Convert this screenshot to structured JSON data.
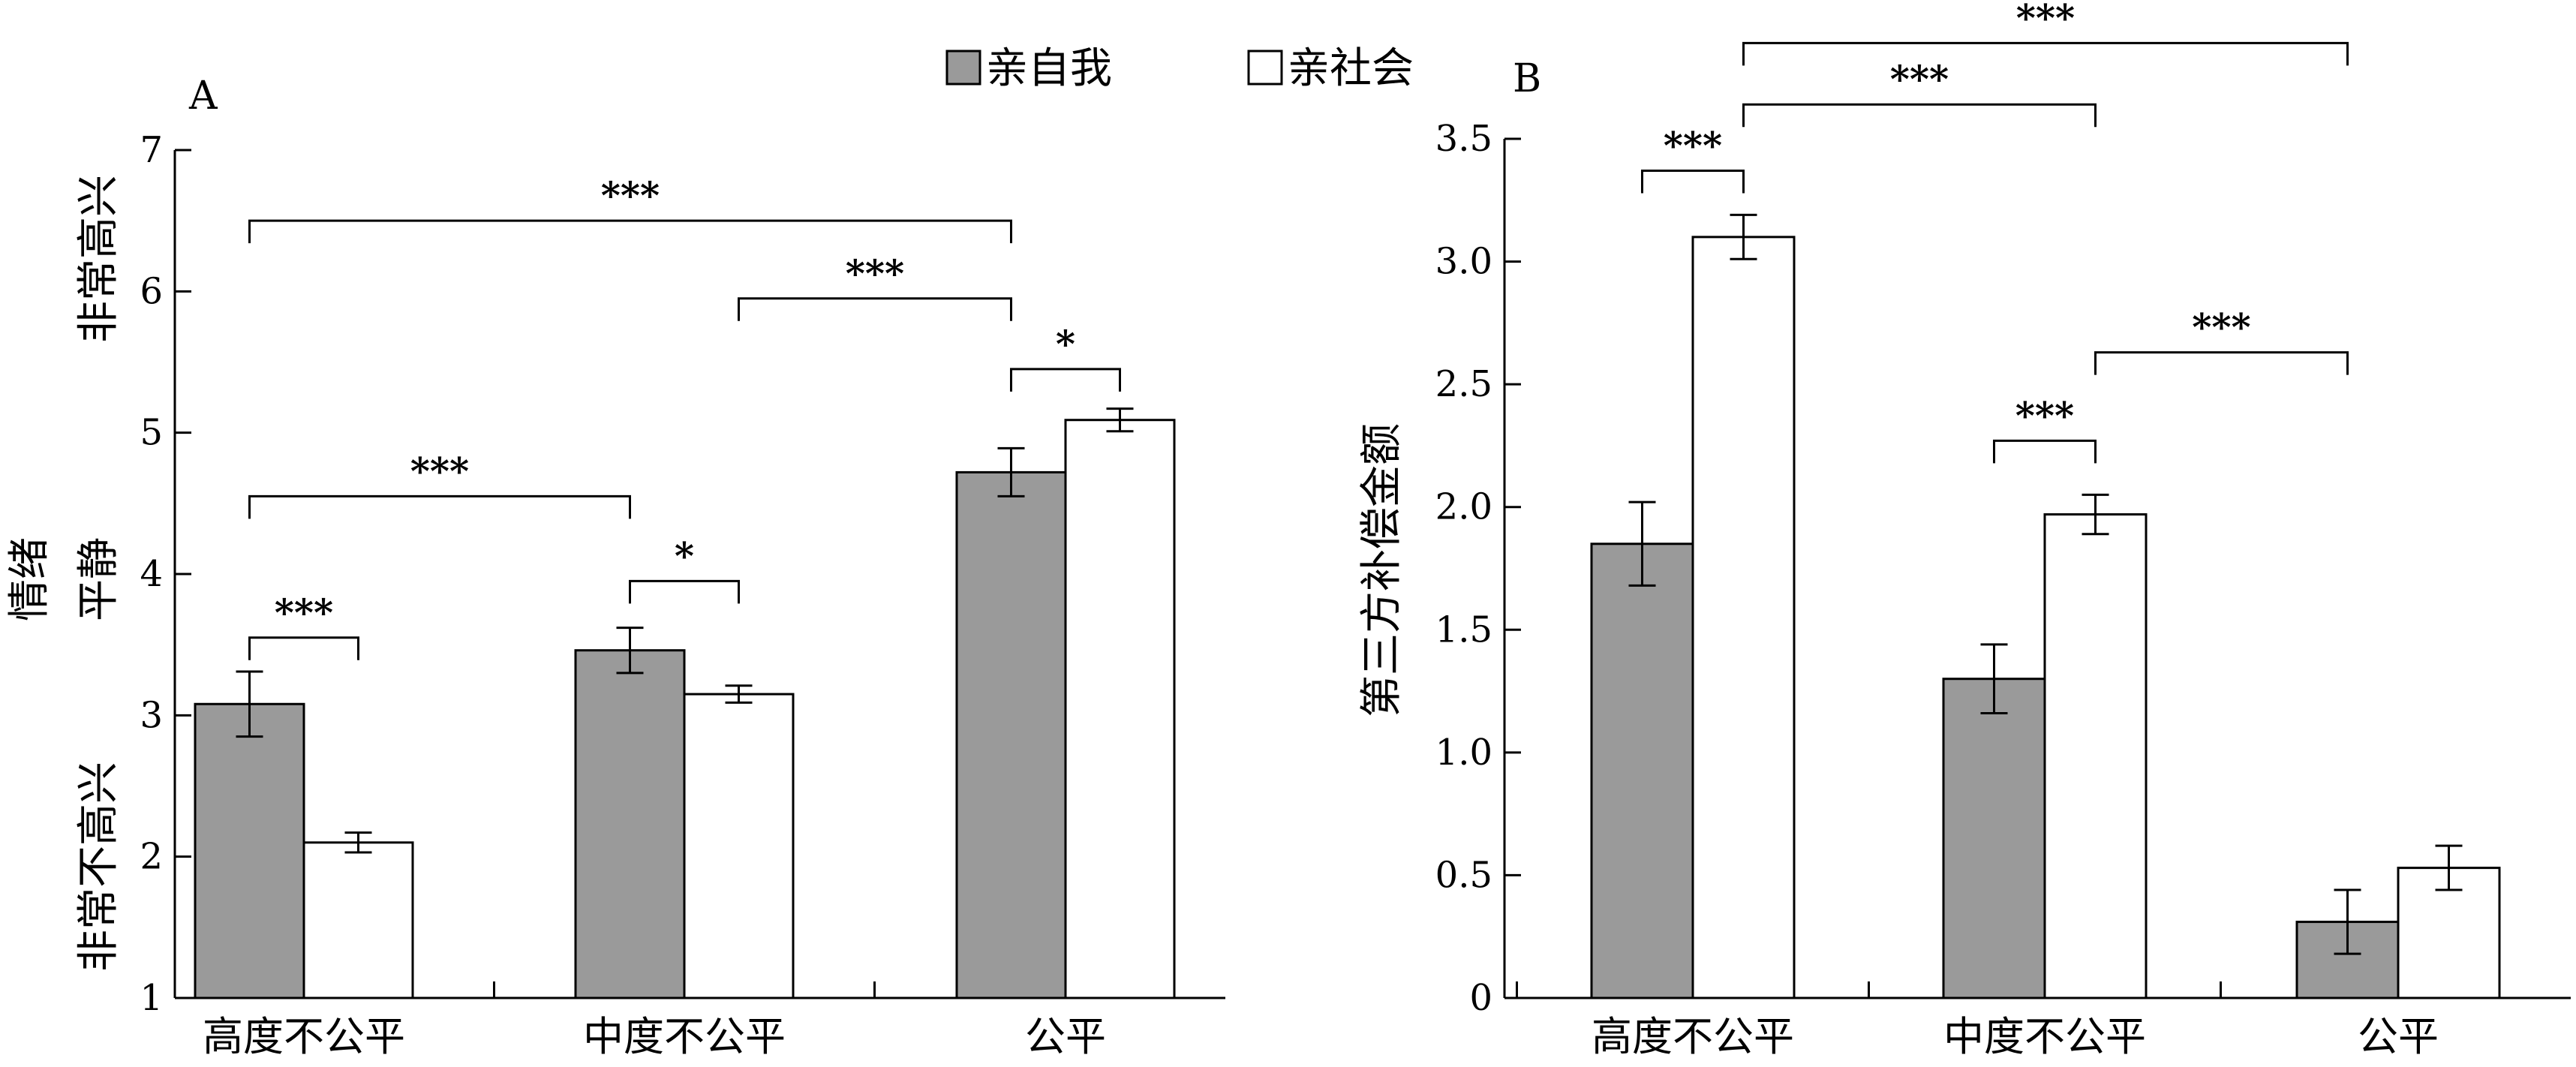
{
  "legend": {
    "self": "亲自我",
    "social": "亲社会"
  },
  "colors": {
    "self": "#9a9a9a",
    "social": "#ffffff",
    "axis": "#000000"
  },
  "chart_data": [
    {
      "type": "bar",
      "panel_label": "A",
      "categories": [
        "高度不公平",
        "中度不公平",
        "公平"
      ],
      "series": [
        {
          "name": "亲自我",
          "values": [
            3.08,
            3.46,
            4.72
          ],
          "errors": [
            0.23,
            0.16,
            0.17
          ]
        },
        {
          "name": "亲社会",
          "values": [
            2.1,
            3.15,
            5.09
          ],
          "errors": [
            0.07,
            0.06,
            0.08
          ]
        }
      ],
      "ylim": [
        1,
        7
      ],
      "yticks": [
        "1",
        "2",
        "3",
        "4",
        "5",
        "6",
        "7"
      ],
      "ylabel_main": "情绪",
      "ylabel_top": "非常高兴",
      "ylabel_middle": "平静",
      "ylabel_bottom": "非常不高兴",
      "significance": [
        {
          "label": "***",
          "from": [
            0,
            0
          ],
          "to": [
            0,
            1
          ],
          "y": 3.55
        },
        {
          "label": "*",
          "from": [
            1,
            0
          ],
          "to": [
            1,
            1
          ],
          "y": 3.95
        },
        {
          "label": "***",
          "from": [
            0,
            0
          ],
          "to": [
            1,
            0
          ],
          "y": 4.55
        },
        {
          "label": "*",
          "from": [
            2,
            0
          ],
          "to": [
            2,
            1
          ],
          "y": 5.45
        },
        {
          "label": "***",
          "from": [
            1,
            1
          ],
          "to": [
            2,
            0
          ],
          "y": 5.95
        },
        {
          "label": "***",
          "from": [
            0,
            0
          ],
          "to": [
            2,
            0
          ],
          "y": 6.5
        }
      ]
    },
    {
      "type": "bar",
      "panel_label": "B",
      "categories": [
        "高度不公平",
        "中度不公平",
        "公平"
      ],
      "series": [
        {
          "name": "亲自我",
          "values": [
            1.85,
            1.3,
            0.31
          ],
          "errors": [
            0.17,
            0.14,
            0.13
          ]
        },
        {
          "name": "亲社会",
          "values": [
            3.1,
            1.97,
            0.53
          ],
          "errors": [
            0.09,
            0.08,
            0.09
          ]
        }
      ],
      "ylim": [
        0,
        3.5
      ],
      "yticks": [
        "0",
        "0.5",
        "1.0",
        "1.5",
        "2.0",
        "2.5",
        "3.0",
        "3.5"
      ],
      "ylabel": "第三方补偿金额",
      "significance": [
        {
          "label": "***",
          "from": [
            1,
            0
          ],
          "to": [
            1,
            1
          ],
          "y": 2.27
        },
        {
          "label": "***",
          "from": [
            1,
            1
          ],
          "to": [
            2,
            0
          ],
          "y": 2.63
        },
        {
          "label": "***",
          "from": [
            0,
            0
          ],
          "to": [
            0,
            1
          ],
          "y": 3.37
        },
        {
          "label": "***",
          "from": [
            0,
            1
          ],
          "to": [
            1,
            1
          ],
          "y": 3.64
        },
        {
          "label": "***",
          "from": [
            0,
            1
          ],
          "to": [
            2,
            0
          ],
          "y": 3.89
        }
      ]
    }
  ]
}
